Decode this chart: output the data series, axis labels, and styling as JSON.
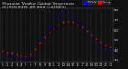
{
  "background_color": "#111111",
  "plot_bg_color": "#111111",
  "grid_color": "#555555",
  "legend_blue_label": "THSW",
  "legend_red_label": "Temp",
  "temp_data": [
    [
      0,
      39
    ],
    [
      1,
      38
    ],
    [
      2,
      37
    ],
    [
      3,
      36
    ],
    [
      4,
      35
    ],
    [
      5,
      34
    ],
    [
      6,
      36
    ],
    [
      7,
      41
    ],
    [
      8,
      47
    ],
    [
      9,
      53
    ],
    [
      10,
      58
    ],
    [
      11,
      62
    ],
    [
      12,
      66
    ],
    [
      13,
      68
    ],
    [
      14,
      69
    ],
    [
      15,
      68
    ],
    [
      16,
      66
    ],
    [
      17,
      63
    ],
    [
      18,
      59
    ],
    [
      19,
      55
    ],
    [
      20,
      51
    ],
    [
      21,
      48
    ],
    [
      22,
      45
    ],
    [
      23,
      43
    ]
  ],
  "thsw_data": [
    [
      0,
      37
    ],
    [
      1,
      36
    ],
    [
      2,
      35
    ],
    [
      3,
      34
    ],
    [
      4,
      33
    ],
    [
      5,
      32
    ],
    [
      6,
      34
    ],
    [
      7,
      40
    ],
    [
      8,
      50
    ],
    [
      9,
      58
    ],
    [
      10,
      65
    ],
    [
      11,
      71
    ],
    [
      12,
      76
    ],
    [
      13,
      79
    ],
    [
      14,
      78
    ],
    [
      15,
      74
    ],
    [
      16,
      70
    ],
    [
      17,
      65
    ],
    [
      18,
      58
    ],
    [
      19,
      53
    ],
    [
      20,
      48
    ],
    [
      21,
      45
    ],
    [
      22,
      42
    ],
    [
      23,
      40
    ]
  ],
  "temp_color": "#ff0000",
  "thsw_color": "#0000ff",
  "ylim": [
    28,
    82
  ],
  "yticks": [
    30,
    40,
    50,
    60,
    70,
    80
  ],
  "ytick_labels": [
    "30",
    "40",
    "50",
    "60",
    "70",
    "80"
  ],
  "xtick_hours": [
    0,
    1,
    2,
    3,
    4,
    5,
    6,
    7,
    8,
    9,
    10,
    11,
    12,
    13,
    14,
    15,
    16,
    17,
    18,
    19,
    20,
    21,
    22,
    23
  ],
  "xtick_labels": [
    "0",
    "1",
    "2",
    "3",
    "4",
    "5",
    "6",
    "7",
    "8",
    "9",
    "10",
    "11",
    "12",
    "13",
    "14",
    "15",
    "16",
    "17",
    "18",
    "19",
    "20",
    "21",
    "22",
    "23"
  ],
  "marker_size": 1.8,
  "text_color": "#cccccc",
  "title_fontsize": 3.2,
  "tick_fontsize": 2.8,
  "legend_fontsize": 2.8
}
